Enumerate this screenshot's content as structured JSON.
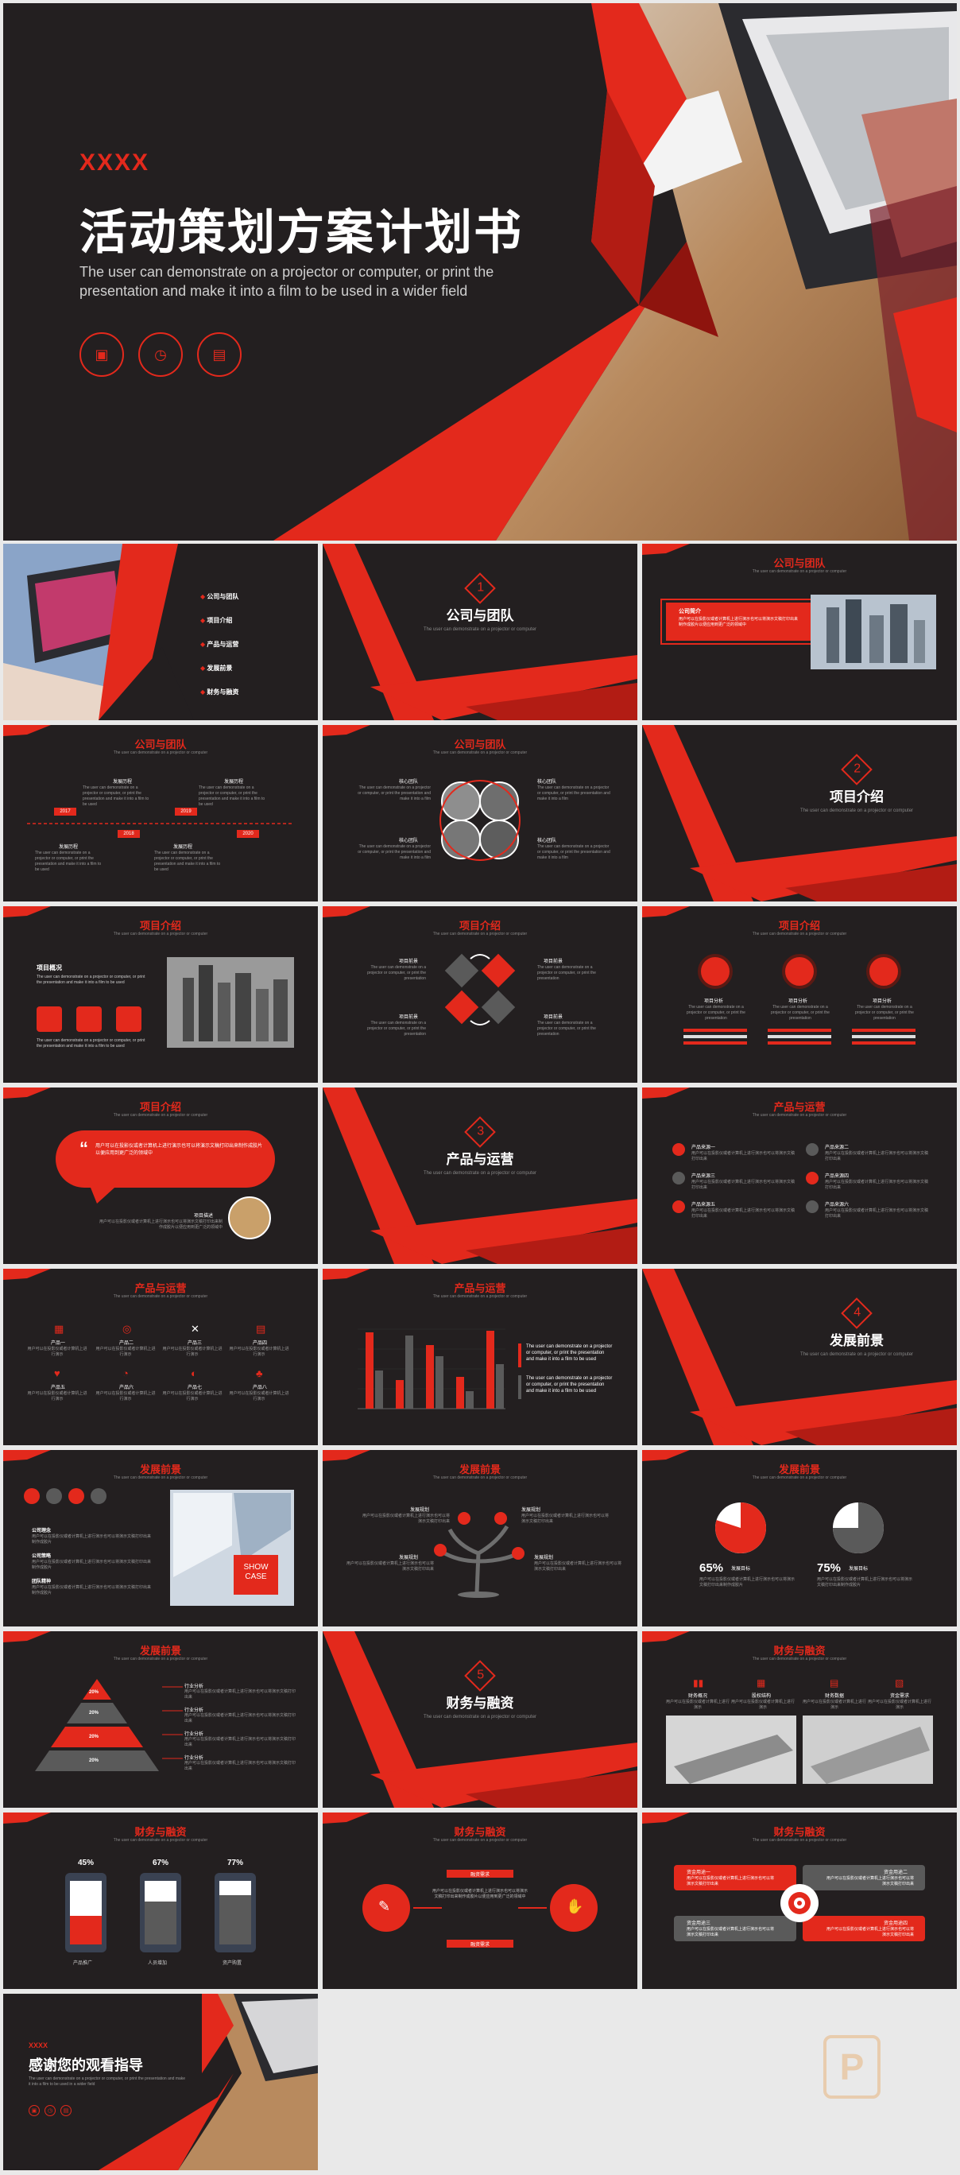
{
  "colors": {
    "accent": "#e3291c",
    "dark": "#231f20",
    "gray": "#5a5a5a"
  },
  "cover": {
    "brand": "XXXX",
    "title": "活动策划方案计划书",
    "subtitle": "The user can demonstrate on a projector or computer, or print the presentation and make it into a film to be used in a wider field",
    "icons": [
      "save-icon",
      "timer-icon",
      "presentation-icon"
    ]
  },
  "toc": {
    "items": [
      "公司与团队",
      "项目介绍",
      "产品与运营",
      "发展前景",
      "财务与融资"
    ]
  },
  "sections": [
    {
      "num": "1",
      "title": "公司与团队",
      "caption": "The user can demonstrate on a projector or computer"
    },
    {
      "num": "2",
      "title": "项目介绍",
      "caption": "The user can demonstrate on a projector or computer"
    },
    {
      "num": "3",
      "title": "产品与运营",
      "caption": "The user can demonstrate on a projector or computer"
    },
    {
      "num": "4",
      "title": "发展前景",
      "caption": "The user can demonstrate on a projector or computer"
    },
    {
      "num": "5",
      "title": "财务与融资",
      "caption": "The user can demonstrate on a projector or computer"
    }
  ],
  "slide_sub": "The user can demonstrate on a projector or computer",
  "s3": {
    "hdr": "公司与团队",
    "label": "公司简介",
    "body": "用户可以在投影仪或者计算机上进行演示也可以将演示文稿打印出来制作成胶片以便应用到更广泛的领域中"
  },
  "s4": {
    "hdr": "公司与团队",
    "years": [
      "2017",
      "2018",
      "2019",
      "2020"
    ],
    "labels": [
      "发展历程",
      "发展历程",
      "发展历程",
      "发展历程"
    ],
    "text": "The user can demonstrate on a projector or computer, or print the presentation and make it into a film to be used"
  },
  "s5": {
    "hdr": "公司与团队",
    "labels": [
      "核心团队",
      "核心团队",
      "核心团队",
      "核心团队"
    ],
    "text": "The user can demonstrate on a projector or computer, or print the presentation and make it into a film"
  },
  "s7": {
    "hdr": "项目介绍",
    "label": "项目概况",
    "text": "The user can demonstrate on a projector or computer, or print the presentation and make it into a film to be used"
  },
  "s8": {
    "hdr": "项目介绍",
    "labels": [
      "项目前景",
      "项目前景",
      "项目前景",
      "项目前景"
    ],
    "text": "The user can demonstrate on a projector or computer, or print the presentation"
  },
  "s9": {
    "hdr": "项目介绍",
    "labels": [
      "项目分析",
      "项目分析",
      "项目分析"
    ],
    "text": "The user can demonstrate on a projector or computer, or print the presentation"
  },
  "s10": {
    "hdr": "项目介绍",
    "quote": "用户可以在投影仪或者计算机上进行演示也可以将演示文稿打印出来制作成胶片以便应用到更广泛的领域中",
    "label": "项目描述",
    "text": "用户可以在投影仪或者计算机上进行演示也可以将演示文稿打印出来制作成胶片以便应用到更广泛的领域中"
  },
  "s12": {
    "hdr": "产品与运营",
    "items": [
      "产品来源一",
      "产品来源二",
      "产品来源三",
      "产品来源四",
      "产品来源五",
      "产品来源六"
    ],
    "text": "用户可以在投影仪或者计算机上进行演示也可以将演示文稿打印出来"
  },
  "s13": {
    "hdr": "产品与运营",
    "items": [
      "产品一",
      "产品二",
      "产品三",
      "产品四",
      "产品五",
      "产品六",
      "产品七",
      "产品八"
    ],
    "text": "用户可以在投影仪或者计算机上进行演示"
  },
  "s14": {
    "hdr": "产品与运营",
    "text1": "The user can demonstrate on a projector or computer, or print the presentation and make it into a film to be used",
    "text2": "The user can demonstrate on a projector or computer, or print the presentation and make it into a film to be used"
  },
  "s16": {
    "hdr": "发展前景",
    "labels": [
      "公司理念",
      "公司策略",
      "团队精神"
    ],
    "text": "用户可以在投影仪或者计算机上进行演示也可以将演示文稿打印出来制作成胶片",
    "showcase": "SHOW CASE"
  },
  "s17": {
    "hdr": "发展前景",
    "labels": [
      "发展规划",
      "发展规划",
      "发展规划",
      "发展规划"
    ],
    "text": "用户可以在投影仪或者计算机上进行演示也可以将演示文稿打印出来"
  },
  "s18": {
    "hdr": "发展前景",
    "pcts": [
      "65%",
      "75%"
    ],
    "labels": [
      "发展目标",
      "发展目标"
    ],
    "text": "用户可以在投影仪或者计算机上进行演示也可以将演示文稿打印出来制作成胶片"
  },
  "s19": {
    "hdr": "发展前景",
    "pcts": [
      "20%",
      "20%",
      "20%",
      "20%"
    ],
    "labels": [
      "行业分析",
      "行业分析",
      "行业分析",
      "行业分析"
    ],
    "text": "用户可以在投影仪或者计算机上进行演示也可以将演示文稿打印出来"
  },
  "s21": {
    "hdr": "财务与融资",
    "labels": [
      "财务概况",
      "股权结构",
      "财务数据",
      "资金需求"
    ],
    "text": "用户可以在投影仪或者计算机上进行演示"
  },
  "s22": {
    "hdr": "财务与融资",
    "pcts": [
      "45%",
      "67%",
      "77%"
    ],
    "labels": [
      "产品推广",
      "人员增加",
      "资产购置"
    ]
  },
  "s23": {
    "hdr": "财务与融资",
    "top": "融资需求",
    "bottom": "融资需求",
    "text": "用户可以在投影仪或者计算机上进行演示也可以将演示文稿打印出来制作成胶片以便应用到更广泛的领域中"
  },
  "s24": {
    "hdr": "财务与融资",
    "labels": [
      "资金用途一",
      "资金用途二",
      "资金用途三",
      "资金用途四"
    ],
    "text": "用户可以在投影仪或者计算机上进行演示也可以将演示文稿打印出来"
  },
  "end": {
    "brand": "XXXX",
    "title": "感谢您的观看指导",
    "text": "The user can demonstrate on a projector or computer, or print the presentation and make it into a film to be used in a wider field"
  },
  "watermark": "P"
}
